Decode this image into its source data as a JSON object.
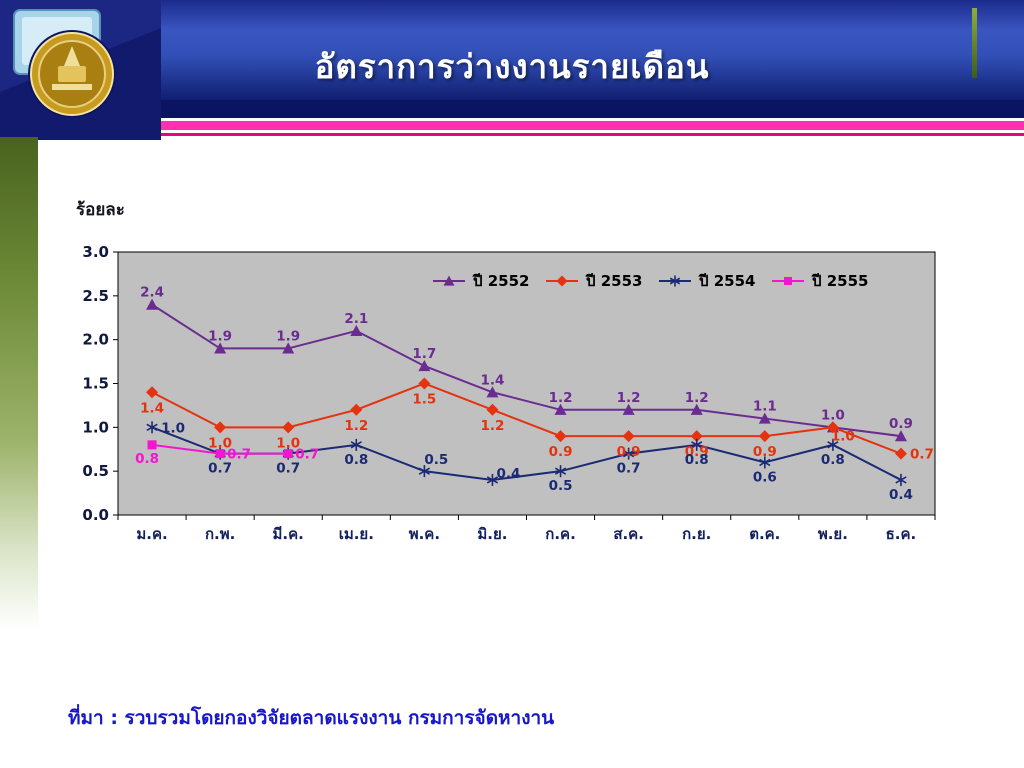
{
  "header": {
    "title": "อัตราการว่างงานรายเดือน"
  },
  "source": "ที่มา : รวบรวมโดยกองวิจัยตลาดแรงงาน กรมการจัดหางาน",
  "colors": {
    "header_blue": "#2c46b4",
    "navy_stripe": "#0a1462",
    "pink_stripe": "#ff2fae",
    "crimson_stripe": "#e5077e",
    "left_bar_green": "#6d8b38",
    "source_text": "#1717c9",
    "plot_background": "#c0c0c0"
  },
  "chart_data": {
    "type": "line",
    "title": "อัตราการว่างงานรายเดือน",
    "xlabel": "",
    "ylabel": "ร้อยละ",
    "ylim": [
      0.0,
      3.0
    ],
    "ytick_step": 0.5,
    "grid": false,
    "legend_position": "top-center-inside",
    "plot_bg": "#c0c0c0",
    "categories": [
      "ม.ค.",
      "ก.พ.",
      "มี.ค.",
      "เม.ย.",
      "พ.ค.",
      "มิ.ย.",
      "ก.ค.",
      "ส.ค.",
      "ก.ย.",
      "ต.ค.",
      "พ.ย.",
      "ธ.ค."
    ],
    "series": [
      {
        "name": "ปี 2552",
        "color": "#6b2c91",
        "marker": "triangle",
        "values": [
          2.4,
          1.9,
          1.9,
          2.1,
          1.7,
          1.4,
          1.2,
          1.2,
          1.2,
          1.1,
          1.0,
          0.9
        ]
      },
      {
        "name": "ปี 2553",
        "color": "#e5320f",
        "marker": "diamond",
        "values": [
          1.4,
          1.0,
          1.0,
          1.2,
          1.5,
          1.2,
          0.9,
          0.9,
          0.9,
          0.9,
          1.0,
          0.7
        ]
      },
      {
        "name": "ปี 2554",
        "color": "#1a2a74",
        "marker": "asterisk",
        "values": [
          1.0,
          0.7,
          0.7,
          0.8,
          0.5,
          0.4,
          0.5,
          0.7,
          0.8,
          0.6,
          0.8,
          0.4
        ]
      },
      {
        "name": "ปี 2555",
        "color": "#f316cf",
        "marker": "square",
        "values": [
          0.8,
          0.7,
          0.7,
          null,
          null,
          null,
          null,
          null,
          null,
          null,
          null,
          null
        ]
      }
    ]
  }
}
